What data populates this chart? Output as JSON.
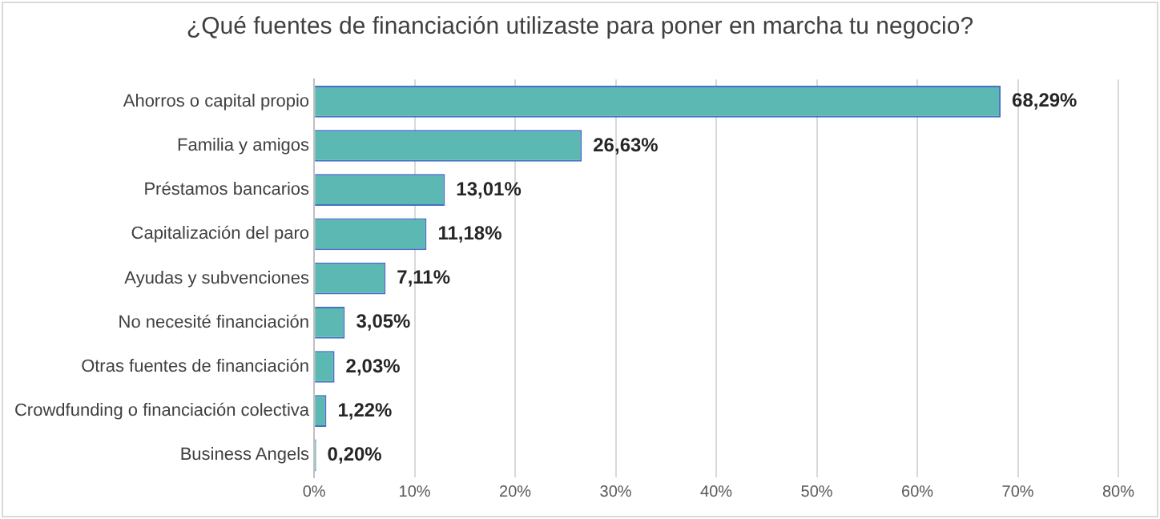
{
  "chart_data": {
    "type": "bar",
    "orientation": "horizontal",
    "title": "¿Qué fuentes de financiación utilizaste para poner en marcha tu negocio?",
    "categories": [
      "Ahorros o capital propio",
      "Familia y amigos",
      "Préstamos bancarios",
      "Capitalización del paro",
      "Ayudas y subvenciones",
      "No necesité financiación",
      "Otras fuentes de financiación",
      "Crowdfunding o financiación colectiva",
      "Business Angels"
    ],
    "values": [
      68.29,
      26.63,
      13.01,
      11.18,
      7.11,
      3.05,
      2.03,
      1.22,
      0.2
    ],
    "value_labels": [
      "68,29%",
      "26,63%",
      "13,01%",
      "11,18%",
      "7,11%",
      "3,05%",
      "2,03%",
      "1,22%",
      "0,20%"
    ],
    "color": "#5cb8b2",
    "xlim": [
      0,
      80
    ],
    "xticks": [
      {
        "value": 0,
        "label": "0%"
      },
      {
        "value": 10,
        "label": "10%"
      },
      {
        "value": 20,
        "label": "20%"
      },
      {
        "value": 30,
        "label": "30%"
      },
      {
        "value": 40,
        "label": "40%"
      },
      {
        "value": 50,
        "label": "50%"
      },
      {
        "value": 60,
        "label": "60%"
      },
      {
        "value": 70,
        "label": "70%"
      },
      {
        "value": 80,
        "label": "80%"
      }
    ],
    "grid": "x",
    "legend": false
  }
}
